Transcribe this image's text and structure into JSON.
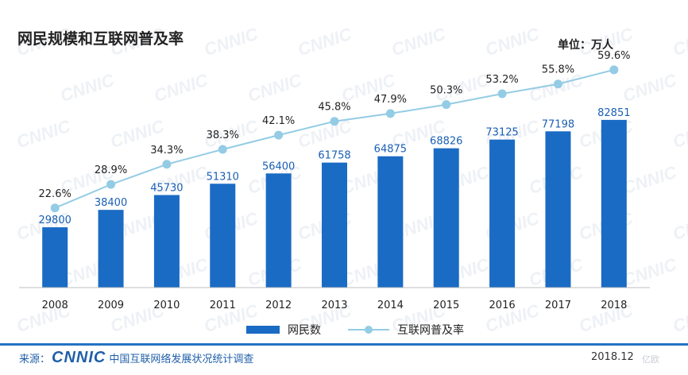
{
  "chart_data": {
    "type": "bar",
    "title": "网民规模和互联网普及率",
    "unit": "单位：万人",
    "categories": [
      "2008",
      "2009",
      "2010",
      "2011",
      "2012",
      "2013",
      "2014",
      "2015",
      "2016",
      "2017",
      "2018"
    ],
    "series": [
      {
        "name": "网民数",
        "type": "bar",
        "values": [
          29800,
          38400,
          45730,
          51310,
          56400,
          61758,
          64875,
          68826,
          73125,
          77198,
          82851
        ]
      },
      {
        "name": "互联网普及率",
        "type": "line",
        "values": [
          22.6,
          28.9,
          34.3,
          38.3,
          42.1,
          45.8,
          47.9,
          50.3,
          53.2,
          55.8,
          59.6
        ],
        "labels": [
          "22.6%",
          "28.9%",
          "34.3%",
          "38.3%",
          "42.1%",
          "45.8%",
          "47.9%",
          "50.3%",
          "53.2%",
          "55.8%",
          "59.6%"
        ]
      }
    ],
    "ylim_bar": [
      0,
      90000
    ],
    "ylim_line": [
      0,
      65
    ],
    "grid": false,
    "legend_position": "bottom"
  },
  "colors": {
    "bar": "#1a6bc4",
    "line": "#93cce4",
    "bar_label": "#1a5fb4",
    "footer": "#1f5fa8"
  },
  "footer": {
    "source_prefix": "来源：",
    "logo": "CNNIC",
    "org": "中国互联网络发展状况统计调查",
    "date": "2018.12",
    "corner_mark": "亿欧"
  },
  "watermark": "CNNIC"
}
